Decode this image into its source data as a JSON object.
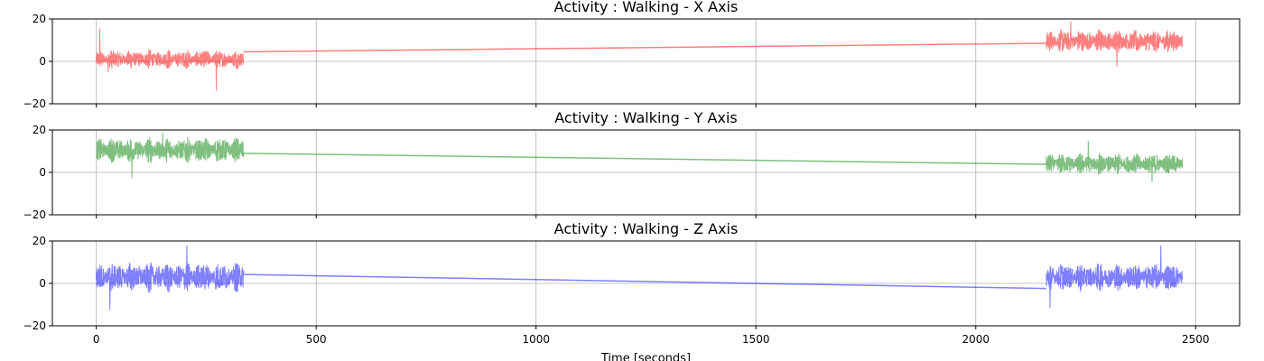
{
  "chart_data": [
    {
      "type": "line",
      "title": "Activity : Walking - X Axis",
      "color": "#ff0000",
      "alpha": 0.5,
      "ylim": [
        -20,
        20
      ],
      "xlim": [
        -100,
        2600
      ],
      "yticks": [
        -20,
        0,
        20
      ],
      "xticks": [
        0,
        500,
        1000,
        1500,
        2000,
        2500
      ],
      "show_xticklabels": false,
      "grid": true,
      "segments": [
        {
          "x_start": 0,
          "x_end": 335,
          "mean": 1.0,
          "amplitude": 4.5,
          "spikes": [
            [
              7,
              15.5
            ],
            [
              26,
              -5
            ],
            [
              272,
              -14
            ]
          ]
        },
        {
          "x_start": 2160,
          "x_end": 2470,
          "mean": 9.5,
          "amplitude": 5.5,
          "spikes": [
            [
              2215,
              19
            ],
            [
              2320,
              -2.5
            ]
          ]
        }
      ],
      "connector": [
        [
          335,
          4.5
        ],
        [
          2160,
          8.5
        ]
      ]
    },
    {
      "type": "line",
      "title": "Activity : Walking - Y Axis",
      "color": "#008000",
      "alpha": 0.5,
      "ylim": [
        -20,
        20
      ],
      "xlim": [
        -100,
        2600
      ],
      "yticks": [
        -20,
        0,
        20
      ],
      "xticks": [
        0,
        500,
        1000,
        1500,
        2000,
        2500
      ],
      "show_xticklabels": false,
      "grid": true,
      "segments": [
        {
          "x_start": 0,
          "x_end": 335,
          "mean": 10.5,
          "amplitude": 6.0,
          "spikes": [
            [
              80,
              -2.5
            ],
            [
              150,
              19
            ]
          ]
        },
        {
          "x_start": 2160,
          "x_end": 2470,
          "mean": 4.0,
          "amplitude": 5.0,
          "spikes": [
            [
              2255,
              15
            ],
            [
              2400,
              -4.5
            ]
          ]
        }
      ],
      "connector": [
        [
          335,
          9.0
        ],
        [
          2160,
          3.8
        ]
      ]
    },
    {
      "type": "line",
      "title": "Activity : Walking - Z Axis",
      "color": "#0000ff",
      "alpha": 0.5,
      "ylim": [
        -20,
        20
      ],
      "xlim": [
        -100,
        2600
      ],
      "yticks": [
        -20,
        0,
        20
      ],
      "xticks": [
        0,
        500,
        1000,
        1500,
        2000,
        2500
      ],
      "show_xticklabels": true,
      "xlabel": "Time [seconds]",
      "grid": true,
      "segments": [
        {
          "x_start": 0,
          "x_end": 335,
          "mean": 3.0,
          "amplitude": 7.0,
          "spikes": [
            [
              30,
              -12.5
            ],
            [
              205,
              18
            ]
          ]
        },
        {
          "x_start": 2160,
          "x_end": 2470,
          "mean": 3.0,
          "amplitude": 6.5,
          "spikes": [
            [
              2168,
              -11.5
            ],
            [
              2420,
              18
            ]
          ]
        }
      ],
      "connector": [
        [
          335,
          4.2
        ],
        [
          2160,
          -2.4
        ]
      ]
    }
  ]
}
